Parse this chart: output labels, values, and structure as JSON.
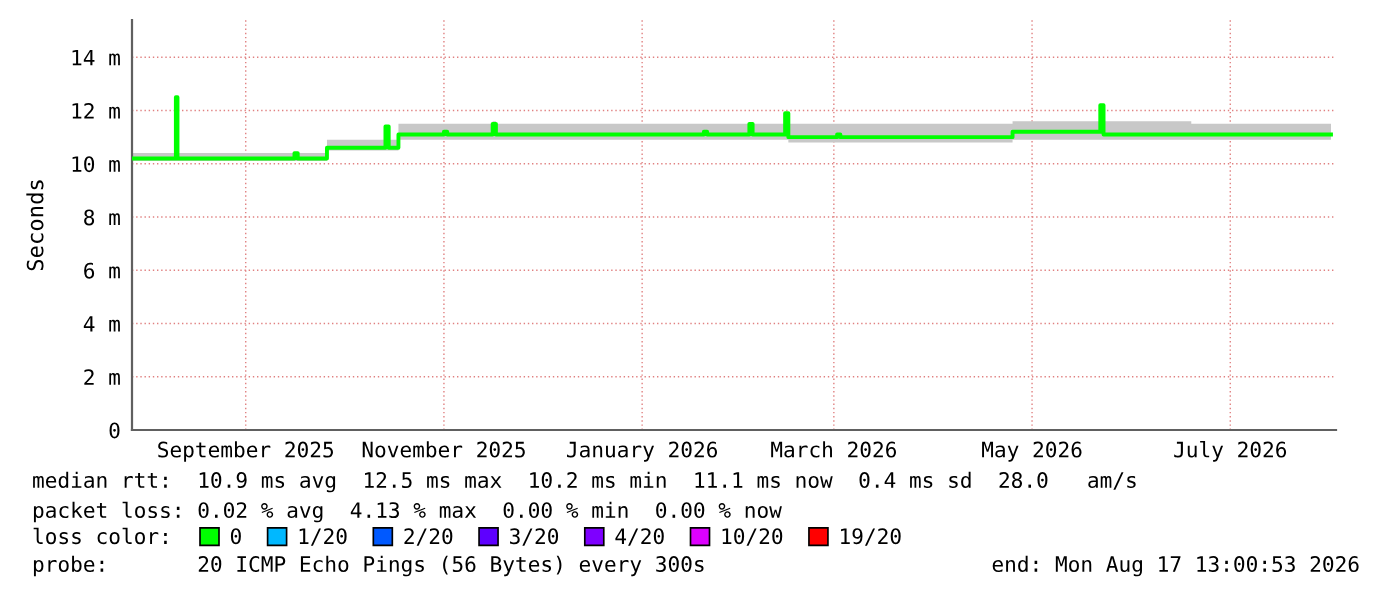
{
  "chart_data": {
    "type": "step",
    "ylabel": "Seconds",
    "legend_title": "loss color:",
    "legend": "bottom",
    "grid": true,
    "xlim": [
      "2025-08-12",
      "2026-08-17T13:00"
    ],
    "xticks": [
      {
        "value": "2025-09-16",
        "label": "September 2025"
      },
      {
        "value": "2025-11-16",
        "label": "November 2025"
      },
      {
        "value": "2026-01-16",
        "label": "January 2026"
      },
      {
        "value": "2026-03-16",
        "label": "March 2026"
      },
      {
        "value": "2026-05-16",
        "label": "May 2026"
      },
      {
        "value": "2026-07-16",
        "label": "July 2026"
      }
    ],
    "ylim": [
      0,
      15.4
    ],
    "yticks": [
      0,
      {
        "value": 2,
        "label": "2 m"
      },
      {
        "value": 4,
        "label": "4 m"
      },
      {
        "value": 6,
        "label": "6 m"
      },
      {
        "value": 8,
        "label": "8 m"
      },
      {
        "value": 10,
        "label": "10 m"
      },
      {
        "value": 12,
        "label": "12 m"
      },
      {
        "value": 14,
        "label": "14 m"
      }
    ],
    "x": [
      "2025-08-12",
      "2025-08-25",
      "2025-08-25T12:00",
      "2025-08-26",
      "2025-09-30",
      "2025-10-01",
      "2025-10-02",
      "2025-10-10",
      "2025-10-11",
      "2025-10-28",
      "2025-10-29",
      "2025-10-30",
      "2025-11-01",
      "2025-11-02",
      "2025-11-15",
      "2025-11-16",
      "2025-11-17",
      "2025-11-30",
      "2025-12-01",
      "2025-12-02",
      "2026-02-03",
      "2026-02-04",
      "2026-02-05",
      "2026-02-17",
      "2026-02-18",
      "2026-02-19",
      "2026-02-28",
      "2026-03-01",
      "2026-03-02",
      "2026-03-16",
      "2026-03-17",
      "2026-03-18",
      "2026-05-09",
      "2026-05-10",
      "2026-06-05",
      "2026-06-06",
      "2026-06-07",
      "2026-07-04",
      "2026-08-16"
    ],
    "series": [
      {
        "color": "#00ff00",
        "values": [
          10.2,
          10.2,
          12.5,
          10.2,
          10.2,
          10.4,
          10.2,
          10.2,
          10.6,
          10.6,
          11.4,
          10.6,
          10.6,
          11.1,
          11.1,
          11.2,
          11.1,
          11.1,
          11.5,
          11.1,
          11.1,
          11.2,
          11.1,
          11.1,
          11.5,
          11.1,
          11.1,
          11.9,
          11.0,
          11.0,
          11.1,
          11.0,
          11.0,
          11.2,
          11.2,
          12.2,
          11.1,
          11.1,
          11.1
        ],
        "lower": [
          10.1,
          10.1,
          10.1,
          10.1,
          10.1,
          10.1,
          10.1,
          10.1,
          10.5,
          10.5,
          10.5,
          10.5,
          10.5,
          10.9,
          10.9,
          10.9,
          10.9,
          10.9,
          10.9,
          10.9,
          10.9,
          10.9,
          10.9,
          10.9,
          10.9,
          10.9,
          10.9,
          10.9,
          10.8,
          10.8,
          10.8,
          10.8,
          10.8,
          10.9,
          10.9,
          10.9,
          10.9,
          10.9,
          10.9
        ],
        "upper": [
          10.4,
          10.4,
          10.4,
          10.4,
          10.4,
          10.4,
          10.4,
          10.4,
          10.9,
          10.9,
          10.9,
          10.9,
          10.9,
          11.5,
          11.5,
          11.5,
          11.5,
          11.5,
          11.6,
          11.5,
          11.5,
          11.5,
          11.5,
          11.5,
          11.5,
          11.5,
          11.5,
          11.5,
          11.5,
          11.5,
          11.5,
          11.5,
          11.5,
          11.6,
          11.6,
          11.6,
          11.6,
          11.5,
          11.5
        ]
      },
      {
        "name": "0",
        "color": "#00ff00",
        "values": [
          null,
          null,
          null,
          null,
          null,
          null,
          null,
          null,
          null,
          null,
          null,
          null,
          null,
          null,
          null,
          null,
          null,
          null,
          null,
          null,
          null,
          null,
          null,
          null,
          null,
          null,
          null,
          null,
          null,
          null,
          null,
          null,
          null,
          null,
          null,
          null,
          null,
          null,
          null
        ]
      },
      {
        "name": "1/20",
        "color": "#00b8ff",
        "values": [
          null,
          null,
          null,
          null,
          null,
          null,
          null,
          null,
          null,
          null,
          null,
          null,
          null,
          null,
          null,
          null,
          null,
          null,
          null,
          null,
          null,
          null,
          null,
          null,
          null,
          null,
          null,
          null,
          null,
          null,
          null,
          null,
          null,
          null,
          null,
          null,
          null,
          null,
          null
        ]
      },
      {
        "name": "2/20",
        "color": "#0059ff",
        "values": [
          null,
          null,
          null,
          null,
          null,
          null,
          null,
          null,
          null,
          null,
          null,
          null,
          null,
          null,
          null,
          null,
          null,
          null,
          null,
          null,
          null,
          null,
          null,
          null,
          null,
          null,
          null,
          null,
          null,
          null,
          null,
          null,
          null,
          null,
          null,
          null,
          null,
          null,
          null
        ]
      },
      {
        "name": "3/20",
        "color": "#5e00ff",
        "values": [
          null,
          null,
          null,
          null,
          null,
          null,
          null,
          null,
          null,
          null,
          null,
          null,
          null,
          null,
          null,
          null,
          null,
          null,
          null,
          null,
          null,
          null,
          null,
          null,
          null,
          null,
          null,
          null,
          null,
          null,
          null,
          null,
          null,
          null,
          null,
          null,
          null,
          null,
          null
        ]
      },
      {
        "name": "4/20",
        "color": "#7e00ff",
        "values": [
          null,
          null,
          null,
          null,
          null,
          null,
          null,
          null,
          null,
          null,
          null,
          null,
          null,
          null,
          null,
          null,
          null,
          null,
          null,
          null,
          null,
          null,
          null,
          null,
          null,
          null,
          null,
          null,
          null,
          null,
          null,
          null,
          null,
          null,
          null,
          null,
          null,
          null,
          null
        ]
      },
      {
        "name": "10/20",
        "color": "#dd00ff",
        "values": [
          null,
          null,
          null,
          null,
          null,
          null,
          null,
          null,
          null,
          null,
          null,
          null,
          null,
          null,
          null,
          null,
          null,
          null,
          null,
          null,
          null,
          null,
          null,
          null,
          null,
          null,
          null,
          null,
          null,
          null,
          null,
          null,
          null,
          null,
          null,
          null,
          null,
          null,
          null
        ]
      },
      {
        "name": "19/20",
        "color": "#ff0000",
        "values": [
          null,
          null,
          null,
          null,
          null,
          null,
          null,
          null,
          null,
          null,
          null,
          null,
          null,
          null,
          null,
          null,
          null,
          null,
          null,
          null,
          null,
          null,
          null,
          null,
          null,
          null,
          null,
          null,
          null,
          null,
          null,
          null,
          null,
          null,
          null,
          null,
          null,
          null,
          null
        ]
      }
    ],
    "annotations": [
      "median rtt:  10.9 ms avg  12.5 ms max  10.2 ms min  11.1 ms now  0.4 ms sd  28.0   am/s",
      "packet loss: 0.02 % avg  4.13 % max  0.00 % min  0.00 % now",
      "probe:       20 ICMP Echo Pings (56 Bytes) every 300s",
      "end: Mon Aug 17 13:00:53 2026"
    ]
  }
}
